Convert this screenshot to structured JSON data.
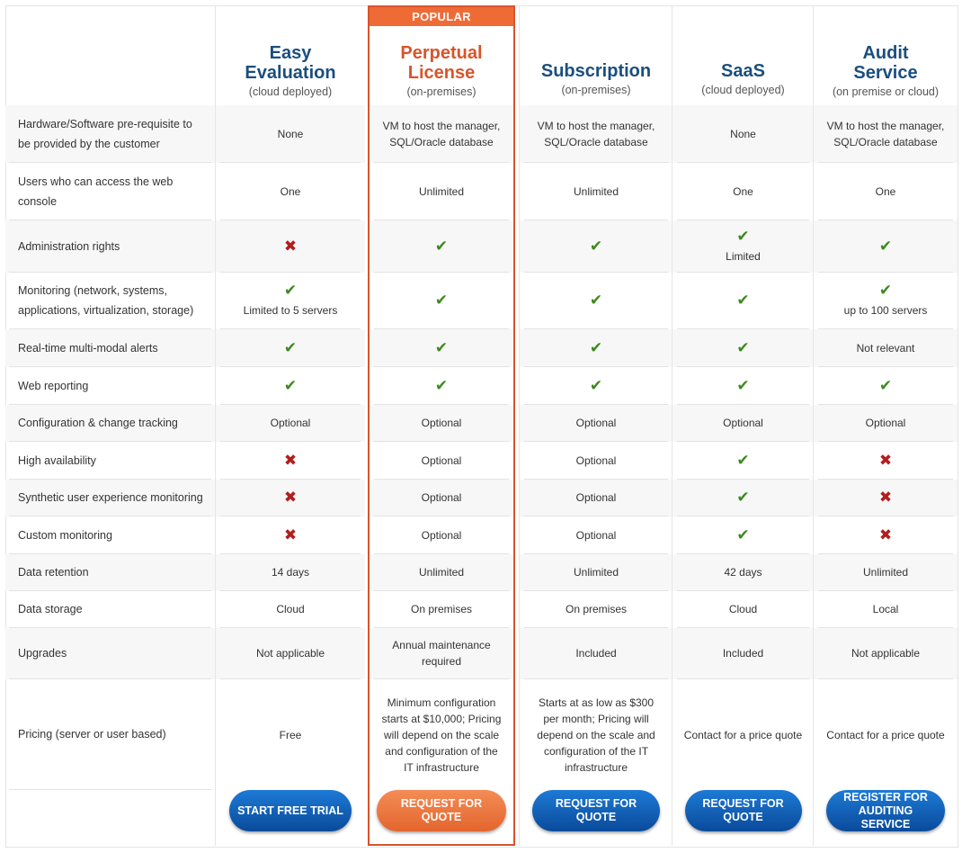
{
  "features": [
    "Hardware/Software pre-requisite to be provided by the customer",
    "Users who can access the web console",
    "Administration rights",
    "Monitoring (network, systems, applications, virtualization, storage)",
    "Real-time multi-modal alerts",
    "Web reporting",
    "Configuration & change tracking",
    "High availability",
    "Synthetic user experience monitoring",
    "Custom monitoring",
    "Data retention",
    "Data storage",
    "Upgrades",
    "Pricing (server or user based)"
  ],
  "popular_badge": "POPULAR",
  "plans": [
    {
      "title": "Easy Evaluation",
      "subtitle": "(cloud deployed)",
      "cta": "START FREE TRIAL",
      "cells": [
        {
          "text": "None"
        },
        {
          "text": "One"
        },
        {
          "icon": "cross"
        },
        {
          "icon": "check",
          "text": "Limited to 5 servers"
        },
        {
          "icon": "check"
        },
        {
          "icon": "check"
        },
        {
          "text": "Optional"
        },
        {
          "icon": "cross"
        },
        {
          "icon": "cross"
        },
        {
          "icon": "cross"
        },
        {
          "text": "14 days"
        },
        {
          "text": "Cloud"
        },
        {
          "text": "Not applicable"
        },
        {
          "text": "Free"
        }
      ]
    },
    {
      "title": "Perpetual License",
      "subtitle": "(on-premises)",
      "cta": "REQUEST FOR QUOTE",
      "popular": true,
      "cells": [
        {
          "text": "VM to host the manager, SQL/Oracle database"
        },
        {
          "text": "Unlimited"
        },
        {
          "icon": "check"
        },
        {
          "icon": "check"
        },
        {
          "icon": "check"
        },
        {
          "icon": "check"
        },
        {
          "text": "Optional"
        },
        {
          "text": "Optional"
        },
        {
          "text": "Optional"
        },
        {
          "text": "Optional"
        },
        {
          "text": "Unlimited"
        },
        {
          "text": "On premises"
        },
        {
          "text": "Annual maintenance required"
        },
        {
          "text": "Minimum configuration starts at $10,000; Pricing will depend on the scale and configuration of the IT infrastructure"
        }
      ]
    },
    {
      "title": "Subscription",
      "subtitle": "(on-premises)",
      "cta": "REQUEST FOR QUOTE",
      "cells": [
        {
          "text": "VM to host the manager, SQL/Oracle database"
        },
        {
          "text": "Unlimited"
        },
        {
          "icon": "check"
        },
        {
          "icon": "check"
        },
        {
          "icon": "check"
        },
        {
          "icon": "check"
        },
        {
          "text": "Optional"
        },
        {
          "text": "Optional"
        },
        {
          "text": "Optional"
        },
        {
          "text": "Optional"
        },
        {
          "text": "Unlimited"
        },
        {
          "text": "On premises"
        },
        {
          "text": "Included"
        },
        {
          "text": "Starts at as low as $300 per month; Pricing will depend on the scale and configuration of the IT infrastructure"
        }
      ]
    },
    {
      "title": "SaaS",
      "subtitle": "(cloud deployed)",
      "cta": "REQUEST FOR QUOTE",
      "cells": [
        {
          "text": "None"
        },
        {
          "text": "One"
        },
        {
          "icon": "check",
          "text": "Limited"
        },
        {
          "icon": "check"
        },
        {
          "icon": "check"
        },
        {
          "icon": "check"
        },
        {
          "text": "Optional"
        },
        {
          "icon": "check"
        },
        {
          "icon": "check"
        },
        {
          "icon": "check"
        },
        {
          "text": "42 days"
        },
        {
          "text": "Cloud"
        },
        {
          "text": "Included"
        },
        {
          "text": "Contact for a price quote"
        }
      ]
    },
    {
      "title": "Audit Service",
      "subtitle": "(on premise or cloud)",
      "cta": "REGISTER FOR AUDITING SERVICE",
      "cells": [
        {
          "text": "VM to host the manager, SQL/Oracle database"
        },
        {
          "text": "One"
        },
        {
          "icon": "check"
        },
        {
          "icon": "check",
          "text": "up to 100 servers"
        },
        {
          "text": "Not relevant"
        },
        {
          "icon": "check"
        },
        {
          "text": "Optional"
        },
        {
          "icon": "cross"
        },
        {
          "icon": "cross"
        },
        {
          "icon": "cross"
        },
        {
          "text": "Unlimited"
        },
        {
          "text": "Local"
        },
        {
          "text": "Not applicable"
        },
        {
          "text": "Contact for a price quote"
        }
      ]
    }
  ],
  "icons": {
    "check": "check-icon",
    "cross": "cross-icon"
  },
  "colors": {
    "title_blue": "#1a4e7e",
    "accent_orange": "#d9542b",
    "cta_blue": "#0a4a9a",
    "cta_orange": "#e3652e",
    "check_green": "#3c8a1e",
    "cross_red": "#b01e1e"
  }
}
